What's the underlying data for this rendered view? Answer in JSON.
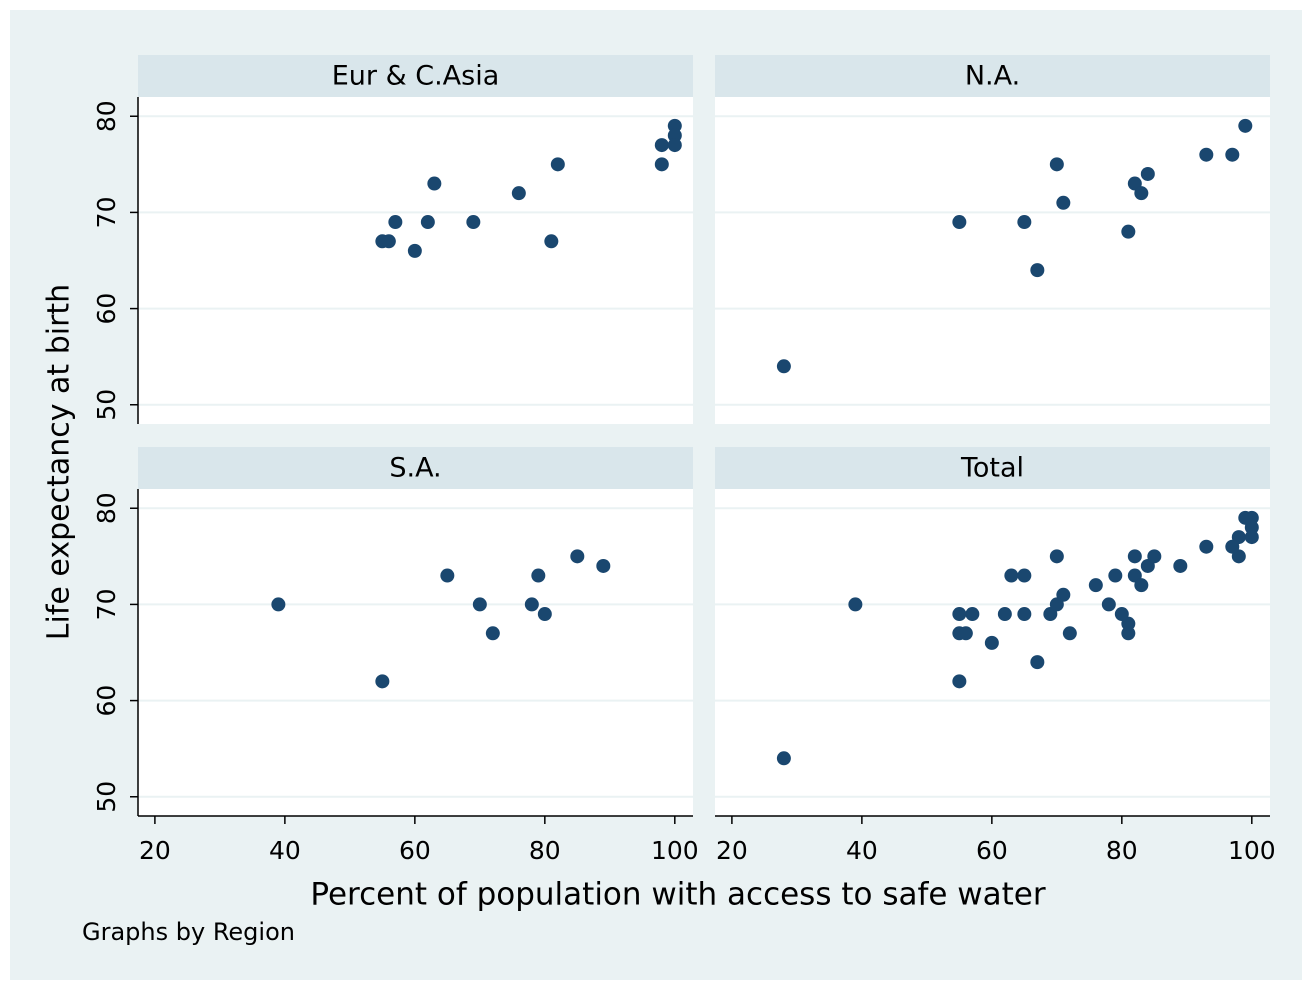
{
  "y_axis_label": "Life expectancy at birth",
  "x_axis_label": "Percent of population with access to safe water",
  "note": "Graphs by Region",
  "chart_data": [
    {
      "type": "scatter",
      "title": "Eur & C.Asia",
      "color": "#1a476f",
      "x": [
        55,
        56,
        57,
        60,
        62,
        63,
        69,
        76,
        81,
        82,
        98,
        98,
        100,
        100,
        100
      ],
      "values": [
        67,
        67,
        69,
        66,
        69,
        73,
        69,
        72,
        67,
        75,
        77,
        75,
        79,
        78,
        77
      ],
      "xlim": [
        17.4,
        102.8
      ],
      "ylim": [
        48,
        82
      ],
      "xticks": [
        20,
        40,
        60,
        80,
        100
      ],
      "yticks": [
        50,
        60,
        70,
        80
      ],
      "grid": true
    },
    {
      "type": "scatter",
      "title": "N.A.",
      "color": "#1a476f",
      "x": [
        28,
        55,
        65,
        67,
        70,
        71,
        81,
        82,
        83,
        84,
        93,
        97,
        99
      ],
      "values": [
        54,
        69,
        69,
        64,
        75,
        71,
        68,
        73,
        72,
        74,
        76,
        76,
        79
      ],
      "xlim": [
        17.4,
        102.8
      ],
      "ylim": [
        48,
        82
      ],
      "xticks": [
        20,
        40,
        60,
        80,
        100
      ],
      "yticks": [
        50,
        60,
        70,
        80
      ],
      "grid": true
    },
    {
      "type": "scatter",
      "title": "S.A.",
      "color": "#1a476f",
      "x": [
        39,
        55,
        65,
        70,
        72,
        78,
        79,
        80,
        85,
        89
      ],
      "values": [
        70,
        62,
        73,
        70,
        67,
        70,
        73,
        69,
        75,
        74
      ],
      "xlim": [
        17.4,
        102.8
      ],
      "ylim": [
        48,
        82
      ],
      "xticks": [
        20,
        40,
        60,
        80,
        100
      ],
      "yticks": [
        50,
        60,
        70,
        80
      ],
      "grid": true
    },
    {
      "type": "scatter",
      "title": "Total",
      "color": "#1a476f",
      "x": [
        55,
        56,
        57,
        60,
        62,
        63,
        69,
        76,
        81,
        82,
        98,
        98,
        100,
        100,
        100,
        28,
        55,
        65,
        67,
        70,
        71,
        81,
        82,
        83,
        84,
        93,
        97,
        99,
        39,
        55,
        65,
        70,
        72,
        78,
        79,
        80,
        85,
        89
      ],
      "values": [
        67,
        67,
        69,
        66,
        69,
        73,
        69,
        72,
        67,
        75,
        77,
        75,
        79,
        78,
        77,
        54,
        69,
        69,
        64,
        75,
        71,
        68,
        73,
        72,
        74,
        76,
        76,
        79,
        70,
        62,
        73,
        70,
        67,
        70,
        73,
        69,
        75,
        74
      ],
      "xlim": [
        17.4,
        102.8
      ],
      "ylim": [
        48,
        82
      ],
      "xticks": [
        20,
        40,
        60,
        80,
        100
      ],
      "yticks": [
        50,
        60,
        70,
        80
      ],
      "grid": true
    }
  ]
}
